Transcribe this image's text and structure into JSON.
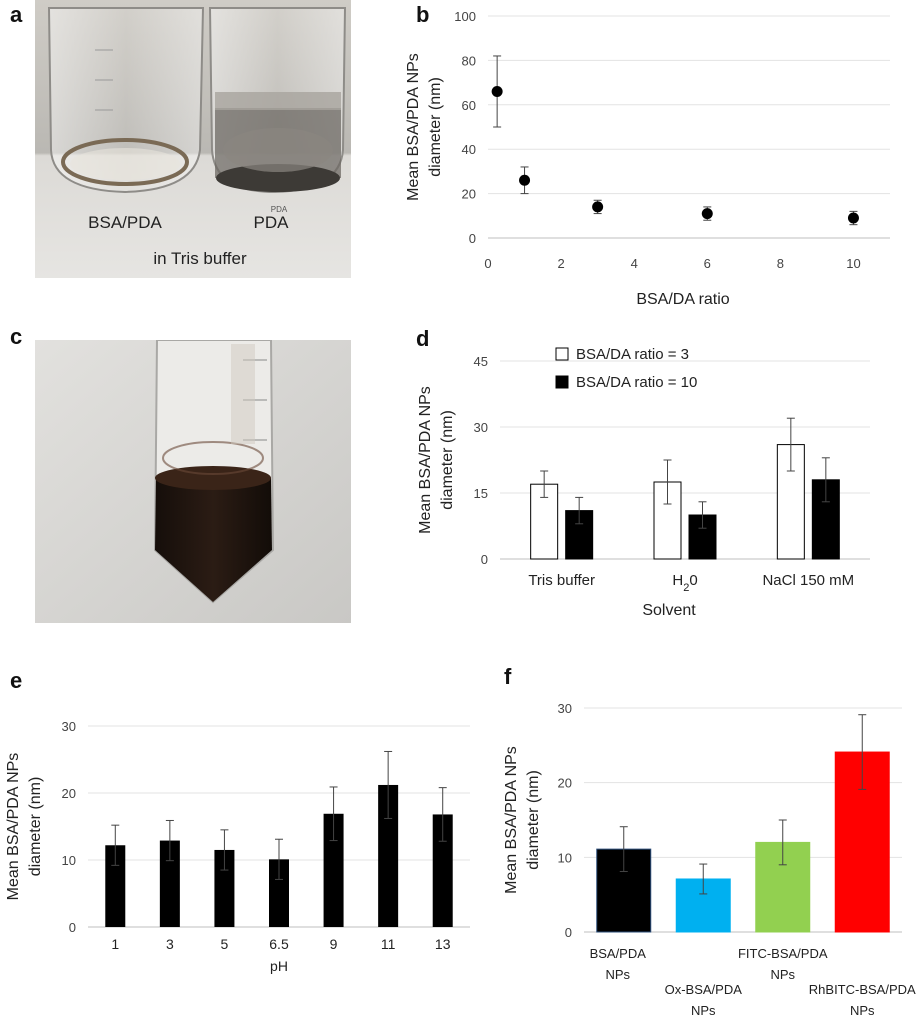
{
  "panels": {
    "a": {
      "letter": "a",
      "photo_labels": {
        "left": "BSA/PDA",
        "right": "PDA",
        "caption": "in Tris buffer",
        "beaker_mark": "PDA"
      }
    },
    "b": {
      "letter": "b"
    },
    "c": {
      "letter": "c"
    },
    "d": {
      "letter": "d"
    },
    "e": {
      "letter": "e"
    },
    "f": {
      "letter": "f"
    }
  },
  "chart_data": [
    {
      "id": "b",
      "type": "scatter",
      "xlabel": "BSA/DA ratio",
      "ylabel": "Mean BSA/PDA NPs diameter (nm)",
      "xlim": [
        0,
        11
      ],
      "ylim": [
        0,
        100
      ],
      "xticks": [
        0,
        2,
        4,
        6,
        8,
        10
      ],
      "yticks": [
        0,
        20,
        40,
        60,
        80,
        100
      ],
      "grid": true,
      "points": [
        {
          "x": 0.25,
          "y": 66,
          "err": 16
        },
        {
          "x": 1,
          "y": 26,
          "err": 6
        },
        {
          "x": 3,
          "y": 14,
          "err": 3
        },
        {
          "x": 6,
          "y": 11,
          "err": 3
        },
        {
          "x": 10,
          "y": 9,
          "err": 3
        }
      ]
    },
    {
      "id": "d",
      "type": "bar",
      "xlabel": "Solvent",
      "ylabel": "Mean BSA/PDA NPs diameter (nm)",
      "ylim": [
        0,
        45
      ],
      "yticks": [
        0,
        15,
        30,
        45
      ],
      "grid": true,
      "legend": "top-left",
      "categories": [
        "Tris buffer",
        "H",
        "NaCl 150 mM"
      ],
      "h2o_subscript": "2",
      "h2o_suffix": "0",
      "series": [
        {
          "name": "BSA/DA ratio = 3",
          "values": [
            17,
            17.5,
            26
          ],
          "errors": [
            3,
            5,
            6
          ],
          "color": "#ffffff"
        },
        {
          "name": "BSA/DA ratio = 10",
          "values": [
            11,
            10,
            18
          ],
          "errors": [
            3,
            3,
            5
          ],
          "color": "#000000"
        }
      ]
    },
    {
      "id": "e",
      "type": "bar",
      "xlabel": "pH",
      "ylabel": "Mean BSA/PDA NPs diameter (nm)",
      "ylim": [
        0,
        30
      ],
      "yticks": [
        0,
        10,
        20,
        30
      ],
      "grid": true,
      "categories": [
        "1",
        "3",
        "5",
        "6.5",
        "9",
        "11",
        "13"
      ],
      "values": [
        12.2,
        12.9,
        11.5,
        10.1,
        16.9,
        21.2,
        16.8
      ],
      "errors": [
        3,
        3,
        3,
        3,
        4,
        5,
        4
      ],
      "color": "#000000"
    },
    {
      "id": "f",
      "type": "bar",
      "ylabel": "Mean BSA/PDA NPs diameter (nm)",
      "ylim": [
        0,
        30
      ],
      "yticks": [
        0,
        10,
        20,
        30
      ],
      "grid": true,
      "categories": [
        [
          "BSA/PDA",
          "NPs"
        ],
        [
          "Ox-BSA/PDA",
          "NPs"
        ],
        [
          "FITC-BSA/PDA",
          "NPs"
        ],
        [
          "RhBITC-BSA/PDA",
          "NPs"
        ]
      ],
      "values": [
        11.1,
        7.1,
        12,
        24.1
      ],
      "errors": [
        3,
        2,
        3,
        5
      ],
      "colors": [
        "#000000",
        "#00b0f0",
        "#92d050",
        "#ff0000"
      ]
    }
  ]
}
